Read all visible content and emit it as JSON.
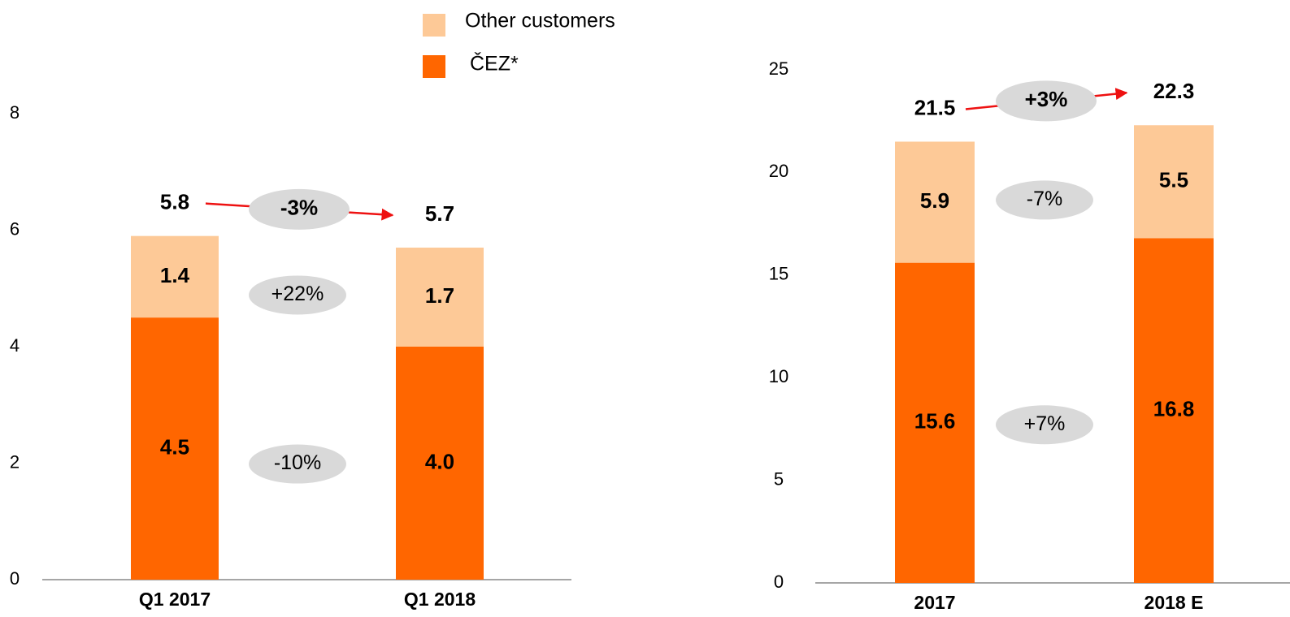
{
  "chart_data": [
    {
      "type": "bar",
      "stacked": true,
      "categories": [
        "Q1 2017",
        "Q1 2018"
      ],
      "series": [
        {
          "name": "ČEZ*",
          "color": "#ff6600",
          "values": [
            4.5,
            4.0
          ],
          "value_labels": [
            "4.5",
            "4.0"
          ],
          "change": "-10%"
        },
        {
          "name": "Other customers",
          "color": "#fdc997",
          "values": [
            1.4,
            1.7
          ],
          "change": "+22%"
        }
      ],
      "totals": [
        5.8,
        5.7
      ],
      "total_change": "-3%",
      "ylim": [
        0,
        8
      ],
      "yticks": [
        0,
        2,
        4,
        6,
        8
      ]
    },
    {
      "type": "bar",
      "stacked": true,
      "categories": [
        "2017",
        "2018 E"
      ],
      "series": [
        {
          "color": "#ff6600",
          "values": [
            15.6,
            16.8
          ],
          "change": "+7%"
        },
        {
          "color": "#fdc997",
          "values": [
            5.9,
            5.5
          ],
          "change": "-7%"
        }
      ],
      "totals": [
        21.5,
        22.3
      ],
      "total_change": "+3%",
      "ylim": [
        0,
        25
      ],
      "yticks": [
        0,
        5,
        10,
        15,
        20,
        25
      ]
    }
  ]
}
